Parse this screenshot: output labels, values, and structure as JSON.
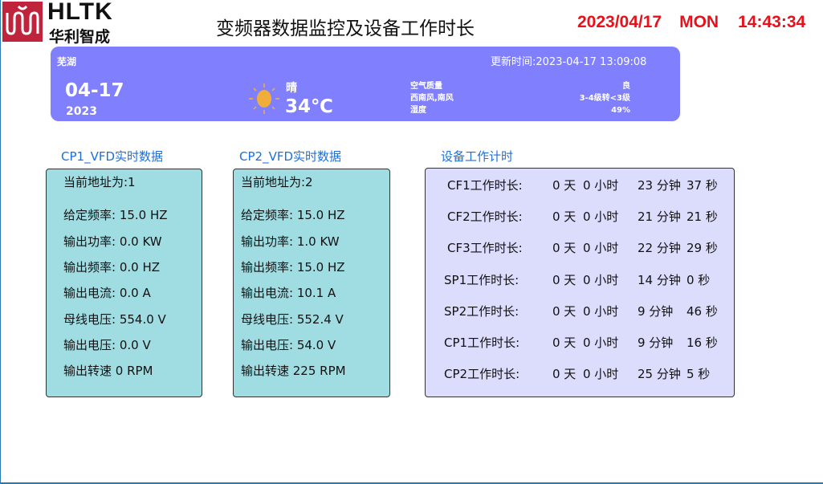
{
  "header": {
    "logo_text": "HLTK",
    "logo_cn": "华利智成",
    "title": "变频器数据监控及设备工作时长",
    "date": "2023/04/17",
    "weekday": "MON",
    "time": "14:43:34"
  },
  "weather": {
    "city": "芜湖",
    "updated": "更新时间:2023-04-17 13:09:08",
    "day": "04-17",
    "year": "2023",
    "condition": "晴",
    "temperature": "34℃",
    "icon": "sun-icon",
    "details": [
      {
        "label": "空气质量",
        "value": "良"
      },
      {
        "label": "西南风,南风",
        "value": "3-4级转<3级"
      },
      {
        "label": "湿度",
        "value": "49%"
      }
    ]
  },
  "cp1": {
    "title": "CP1_VFD实时数据",
    "rows": [
      "当前地址为:1",
      "给定频率:  15.0  HZ",
      "输出功率:  0.0  KW",
      "输出频率:  0.0  HZ",
      "输出电流:  0.0  A",
      "母线电压:  554.0  V",
      "输出电压:  0.0  V",
      "输出转速   0  RPM"
    ]
  },
  "cp2": {
    "title": "CP2_VFD实时数据",
    "rows": [
      "当前地址为:2",
      "给定频率:  15.0  HZ",
      "输出功率:  1.0  KW",
      "输出频率:  15.0  HZ",
      "输出电流:  10.1  A",
      "母线电压:  552.4  V",
      "输出电压:  54.0  V",
      "输出转速   225  RPM"
    ]
  },
  "timer": {
    "title": "设备工作计时",
    "rows": [
      {
        "label": "CF1工作时长:",
        "days": "0 天",
        "hours": "0 小时",
        "minutes": "23 分钟",
        "seconds": "37 秒"
      },
      {
        "label": "CF2工作时长:",
        "days": "0 天",
        "hours": "0 小时",
        "minutes": "21 分钟",
        "seconds": "21 秒"
      },
      {
        "label": "CF3工作时长:",
        "days": "0 天",
        "hours": "0 小时",
        "minutes": "22 分钟",
        "seconds": "29 秒"
      },
      {
        "label": "SP1工作时长:",
        "days": "0 天",
        "hours": "0 小时",
        "minutes": "14 分钟",
        "seconds": "0 秒"
      },
      {
        "label": "SP2工作时长:",
        "days": "0 天",
        "hours": "0 小时",
        "minutes": "9 分钟",
        "seconds": "46 秒"
      },
      {
        "label": "CP1工作时长:",
        "days": "0 天",
        "hours": "0 小时",
        "minutes": "9 分钟",
        "seconds": "16 秒"
      },
      {
        "label": "CP2工作时长:",
        "days": "0 天",
        "hours": "0 小时",
        "minutes": "25 分钟",
        "seconds": "5 秒"
      }
    ]
  }
}
